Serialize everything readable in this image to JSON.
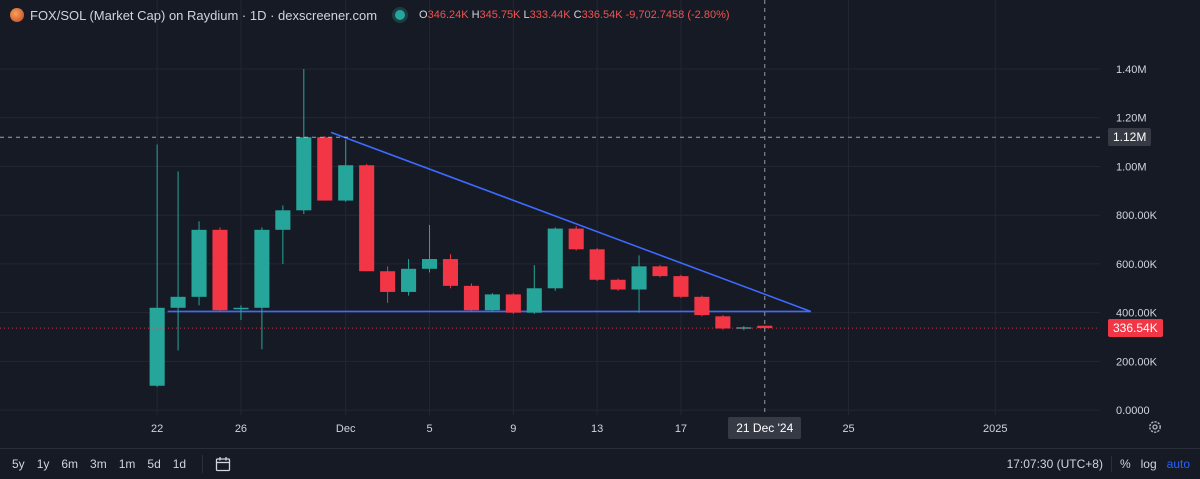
{
  "header": {
    "title": "FOX/SOL (Market Cap) on Raydium · 1D · dexscreener.com",
    "ohlc": [
      {
        "k": "O",
        "v": "346.24K"
      },
      {
        "k": "H",
        "v": "345.75K"
      },
      {
        "k": "L",
        "v": "333.44K"
      },
      {
        "k": "C",
        "v": "336.54K"
      },
      {
        "k": "",
        "v": "-9,702.7458 (-2.80%)"
      }
    ]
  },
  "colors": {
    "up": "#26a69a",
    "down": "#f23645",
    "trendline": "#3d6bff",
    "background": "#161a25",
    "grid": "#232734"
  },
  "chart_data": {
    "type": "candlestick",
    "title": "FOX/SOL (Market Cap) on Raydium · 1D · dexscreener.com",
    "y_ticks": [
      {
        "value": 0,
        "label": "0.0000"
      },
      {
        "value": 200000,
        "label": "200.00K"
      },
      {
        "value": 400000,
        "label": "400.00K"
      },
      {
        "value": 600000,
        "label": "600.00K"
      },
      {
        "value": 800000,
        "label": "800.00K"
      },
      {
        "value": 1000000,
        "label": "1.00M"
      },
      {
        "value": 1200000,
        "label": "1.20M"
      },
      {
        "value": 1400000,
        "label": "1.40M"
      }
    ],
    "ylim": [
      -20000,
      1560000
    ],
    "x_ticks": [
      {
        "day": 0,
        "label": "22"
      },
      {
        "day": 4,
        "label": "26"
      },
      {
        "day": 9,
        "label": "Dec"
      },
      {
        "day": 13,
        "label": "5"
      },
      {
        "day": 17,
        "label": "9"
      },
      {
        "day": 21,
        "label": "13"
      },
      {
        "day": 25,
        "label": "17"
      },
      {
        "day": 33,
        "label": "25"
      },
      {
        "day": 40,
        "label": "2025"
      }
    ],
    "xlim": [
      -7.5,
      45
    ],
    "candles": [
      {
        "date": "2024-11-22",
        "day": 0,
        "o": 100000,
        "h": 1090000,
        "l": 95000,
        "c": 420000
      },
      {
        "date": "2024-11-23",
        "day": 1,
        "o": 420000,
        "h": 980000,
        "l": 245000,
        "c": 465000
      },
      {
        "date": "2024-11-24",
        "day": 2,
        "o": 465000,
        "h": 775000,
        "l": 430000,
        "c": 740000
      },
      {
        "date": "2024-11-25",
        "day": 3,
        "o": 740000,
        "h": 750000,
        "l": 405000,
        "c": 410000
      },
      {
        "date": "2024-11-26",
        "day": 4,
        "o": 420000,
        "h": 430000,
        "l": 370000,
        "c": 420000
      },
      {
        "date": "2024-11-27",
        "day": 5,
        "o": 420000,
        "h": 750000,
        "l": 250000,
        "c": 740000
      },
      {
        "date": "2024-11-28",
        "day": 6,
        "o": 740000,
        "h": 840000,
        "l": 600000,
        "c": 820000
      },
      {
        "date": "2024-11-29",
        "day": 7,
        "o": 820000,
        "h": 1400000,
        "l": 805000,
        "c": 1120000
      },
      {
        "date": "2024-11-30",
        "day": 8,
        "o": 1120000,
        "h": 1125000,
        "l": 860000,
        "c": 860000
      },
      {
        "date": "2024-12-01",
        "day": 9,
        "o": 860000,
        "h": 1110000,
        "l": 855000,
        "c": 1005000
      },
      {
        "date": "2024-12-02",
        "day": 10,
        "o": 1005000,
        "h": 1010000,
        "l": 570000,
        "c": 570000
      },
      {
        "date": "2024-12-03",
        "day": 11,
        "o": 570000,
        "h": 590000,
        "l": 440000,
        "c": 485000
      },
      {
        "date": "2024-12-04",
        "day": 12,
        "o": 485000,
        "h": 620000,
        "l": 470000,
        "c": 580000
      },
      {
        "date": "2024-12-05",
        "day": 13,
        "o": 580000,
        "h": 760000,
        "l": 565000,
        "c": 620000
      },
      {
        "date": "2024-12-06",
        "day": 14,
        "o": 620000,
        "h": 640000,
        "l": 500000,
        "c": 510000
      },
      {
        "date": "2024-12-07",
        "day": 15,
        "o": 510000,
        "h": 520000,
        "l": 405000,
        "c": 410000
      },
      {
        "date": "2024-12-08",
        "day": 16,
        "o": 410000,
        "h": 480000,
        "l": 405000,
        "c": 475000
      },
      {
        "date": "2024-12-09",
        "day": 17,
        "o": 475000,
        "h": 480000,
        "l": 395000,
        "c": 400000
      },
      {
        "date": "2024-12-10",
        "day": 18,
        "o": 400000,
        "h": 595000,
        "l": 395000,
        "c": 500000
      },
      {
        "date": "2024-12-11",
        "day": 19,
        "o": 500000,
        "h": 750000,
        "l": 490000,
        "c": 745000
      },
      {
        "date": "2024-12-12",
        "day": 20,
        "o": 745000,
        "h": 755000,
        "l": 655000,
        "c": 660000
      },
      {
        "date": "2024-12-13",
        "day": 21,
        "o": 660000,
        "h": 665000,
        "l": 530000,
        "c": 535000
      },
      {
        "date": "2024-12-14",
        "day": 22,
        "o": 535000,
        "h": 540000,
        "l": 490000,
        "c": 495000
      },
      {
        "date": "2024-12-15",
        "day": 23,
        "o": 495000,
        "h": 635000,
        "l": 400000,
        "c": 590000
      },
      {
        "date": "2024-12-16",
        "day": 24,
        "o": 590000,
        "h": 595000,
        "l": 545000,
        "c": 550000
      },
      {
        "date": "2024-12-17",
        "day": 25,
        "o": 550000,
        "h": 555000,
        "l": 460000,
        "c": 465000
      },
      {
        "date": "2024-12-18",
        "day": 26,
        "o": 465000,
        "h": 470000,
        "l": 385000,
        "c": 390000
      },
      {
        "date": "2024-12-19",
        "day": 27,
        "o": 385000,
        "h": 390000,
        "l": 330000,
        "c": 335000
      },
      {
        "date": "2024-12-20",
        "day": 28,
        "o": 335000,
        "h": 345000,
        "l": 328000,
        "c": 340000
      },
      {
        "date": "2024-12-21",
        "day": 29,
        "o": 346240,
        "h": 345750,
        "l": 333440,
        "c": 336540
      }
    ],
    "trendlines": [
      {
        "from": {
          "day": 0.5,
          "value": 405000
        },
        "to": {
          "day": 31.2,
          "value": 405000
        }
      },
      {
        "from": {
          "day": 8.3,
          "value": 1140000
        },
        "to": {
          "day": 31.2,
          "value": 405000
        }
      }
    ],
    "price_lines": [
      {
        "value": 1120000,
        "label": "1.12M",
        "style": "dashed-white"
      },
      {
        "value": 336540,
        "label": "336.54K",
        "style": "dotted-red"
      }
    ],
    "crosshair": {
      "day": 29,
      "label": "21 Dec '24"
    },
    "grid": true
  },
  "bottom_bar": {
    "timeframes": [
      "5y",
      "1y",
      "6m",
      "3m",
      "1m",
      "5d",
      "1d"
    ],
    "time": "17:07:30 (UTC+8)",
    "percent": "%",
    "log": "log",
    "auto": "auto"
  }
}
